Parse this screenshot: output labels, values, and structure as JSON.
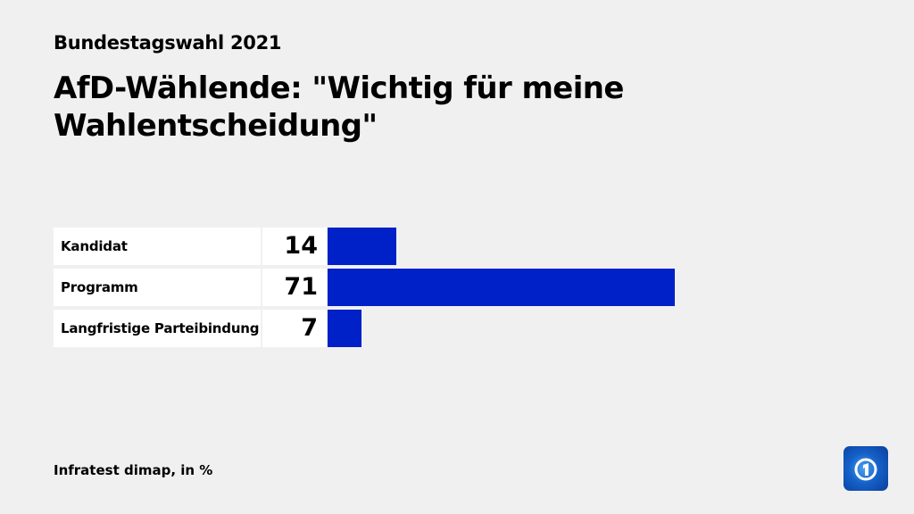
{
  "kicker": "Bundestagswahl 2021",
  "title": "AfD-Wählende: \"Wichtig für meine Wahlentscheidung\"",
  "source": "Infratest dimap, in %",
  "logo": "ARD Tagesschau logo",
  "chart_data": {
    "type": "bar",
    "orientation": "horizontal",
    "categories": [
      "Kandidat",
      "Programm",
      "Langfristige Parteibindung"
    ],
    "values": [
      14,
      71,
      7
    ],
    "unit": "%",
    "xlim": [
      0,
      100
    ],
    "grid": false,
    "bar_color": "#0021c7"
  }
}
